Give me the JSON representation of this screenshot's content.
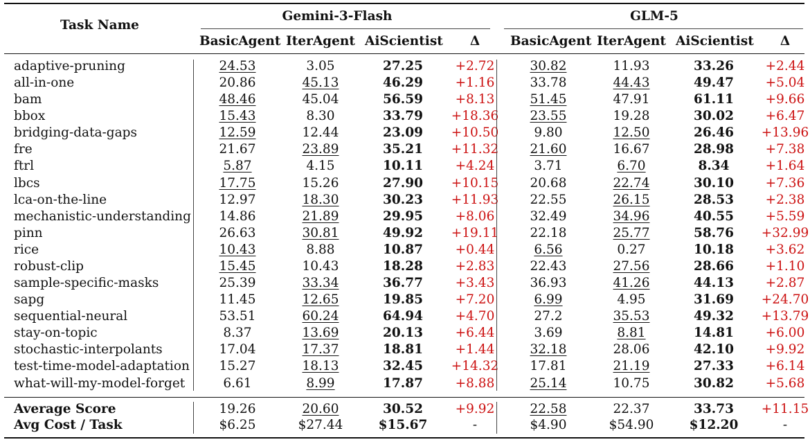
{
  "header": {
    "task_name": "Task Name",
    "groups": [
      "Gemini-3-Flash",
      "GLM-5"
    ],
    "subcols": [
      "BasicAgent",
      "IterAgent",
      "AiScientist",
      "Δ"
    ]
  },
  "rows": [
    {
      "task": "adaptive-pruning",
      "g": [
        [
          "24.53",
          "3.05",
          "27.25",
          "+2.72"
        ],
        [
          "30.82",
          "11.93",
          "33.26",
          "+2.44"
        ]
      ],
      "u": [
        0,
        0
      ]
    },
    {
      "task": "all-in-one",
      "g": [
        [
          "20.86",
          "45.13",
          "46.29",
          "+1.16"
        ],
        [
          "33.78",
          "44.43",
          "49.47",
          "+5.04"
        ]
      ],
      "u": [
        1,
        1
      ]
    },
    {
      "task": "bam",
      "g": [
        [
          "48.46",
          "45.04",
          "56.59",
          "+8.13"
        ],
        [
          "51.45",
          "47.91",
          "61.11",
          "+9.66"
        ]
      ],
      "u": [
        0,
        0
      ]
    },
    {
      "task": "bbox",
      "g": [
        [
          "15.43",
          "8.30",
          "33.79",
          "+18.36"
        ],
        [
          "23.55",
          "19.28",
          "30.02",
          "+6.47"
        ]
      ],
      "u": [
        0,
        0
      ]
    },
    {
      "task": "bridging-data-gaps",
      "g": [
        [
          "12.59",
          "12.44",
          "23.09",
          "+10.50"
        ],
        [
          "9.80",
          "12.50",
          "26.46",
          "+13.96"
        ]
      ],
      "u": [
        0,
        1
      ]
    },
    {
      "task": "fre",
      "g": [
        [
          "21.67",
          "23.89",
          "35.21",
          "+11.32"
        ],
        [
          "21.60",
          "16.67",
          "28.98",
          "+7.38"
        ]
      ],
      "u": [
        1,
        0
      ]
    },
    {
      "task": "ftrl",
      "g": [
        [
          "5.87",
          "4.15",
          "10.11",
          "+4.24"
        ],
        [
          "3.71",
          "6.70",
          "8.34",
          "+1.64"
        ]
      ],
      "u": [
        0,
        1
      ]
    },
    {
      "task": "lbcs",
      "g": [
        [
          "17.75",
          "15.26",
          "27.90",
          "+10.15"
        ],
        [
          "20.68",
          "22.74",
          "30.10",
          "+7.36"
        ]
      ],
      "u": [
        0,
        1
      ]
    },
    {
      "task": "lca-on-the-line",
      "g": [
        [
          "12.97",
          "18.30",
          "30.23",
          "+11.93"
        ],
        [
          "22.55",
          "26.15",
          "28.53",
          "+2.38"
        ]
      ],
      "u": [
        1,
        1
      ]
    },
    {
      "task": "mechanistic-understanding",
      "g": [
        [
          "14.86",
          "21.89",
          "29.95",
          "+8.06"
        ],
        [
          "32.49",
          "34.96",
          "40.55",
          "+5.59"
        ]
      ],
      "u": [
        1,
        1
      ]
    },
    {
      "task": "pinn",
      "g": [
        [
          "26.63",
          "30.81",
          "49.92",
          "+19.11"
        ],
        [
          "22.18",
          "25.77",
          "58.76",
          "+32.99"
        ]
      ],
      "u": [
        1,
        1
      ]
    },
    {
      "task": "rice",
      "g": [
        [
          "10.43",
          "8.88",
          "10.87",
          "+0.44"
        ],
        [
          "6.56",
          "0.27",
          "10.18",
          "+3.62"
        ]
      ],
      "u": [
        0,
        0
      ]
    },
    {
      "task": "robust-clip",
      "g": [
        [
          "15.45",
          "10.43",
          "18.28",
          "+2.83"
        ],
        [
          "22.43",
          "27.56",
          "28.66",
          "+1.10"
        ]
      ],
      "u": [
        0,
        1
      ]
    },
    {
      "task": "sample-specific-masks",
      "g": [
        [
          "25.39",
          "33.34",
          "36.77",
          "+3.43"
        ],
        [
          "36.93",
          "41.26",
          "44.13",
          "+2.87"
        ]
      ],
      "u": [
        1,
        1
      ]
    },
    {
      "task": "sapg",
      "g": [
        [
          "11.45",
          "12.65",
          "19.85",
          "+7.20"
        ],
        [
          "6.99",
          "4.95",
          "31.69",
          "+24.70"
        ]
      ],
      "u": [
        1,
        0
      ]
    },
    {
      "task": "sequential-neural",
      "g": [
        [
          "53.51",
          "60.24",
          "64.94",
          "+4.70"
        ],
        [
          "27.2",
          "35.53",
          "49.32",
          "+13.79"
        ]
      ],
      "u": [
        1,
        1
      ]
    },
    {
      "task": "stay-on-topic",
      "g": [
        [
          "8.37",
          "13.69",
          "20.13",
          "+6.44"
        ],
        [
          "3.69",
          "8.81",
          "14.81",
          "+6.00"
        ]
      ],
      "u": [
        1,
        1
      ]
    },
    {
      "task": "stochastic-interpolants",
      "g": [
        [
          "17.04",
          "17.37",
          "18.81",
          "+1.44"
        ],
        [
          "32.18",
          "28.06",
          "42.10",
          "+9.92"
        ]
      ],
      "u": [
        1,
        0
      ]
    },
    {
      "task": "test-time-model-adaptation",
      "g": [
        [
          "15.27",
          "18.13",
          "32.45",
          "+14.32"
        ],
        [
          "17.81",
          "21.19",
          "27.33",
          "+6.14"
        ]
      ],
      "u": [
        1,
        1
      ]
    },
    {
      "task": "what-will-my-model-forget",
      "g": [
        [
          "6.61",
          "8.99",
          "17.87",
          "+8.88"
        ],
        [
          "25.14",
          "10.75",
          "30.82",
          "+5.68"
        ]
      ],
      "u": [
        1,
        0
      ]
    }
  ],
  "summary": [
    {
      "task": "Average Score",
      "g": [
        [
          "19.26",
          "20.60",
          "30.52",
          "+9.92"
        ],
        [
          "22.58",
          "22.37",
          "33.73",
          "+11.15"
        ]
      ],
      "u": [
        1,
        0
      ]
    },
    {
      "task": "Avg Cost / Task",
      "g": [
        [
          "$6.25",
          "$27.44",
          "$15.67",
          "-"
        ],
        [
          "$4.90",
          "$54.90",
          "$12.20",
          "-"
        ]
      ],
      "u": [
        -1,
        -1
      ]
    }
  ],
  "colors": {
    "delta": "#cc1111",
    "text": "#111111"
  }
}
